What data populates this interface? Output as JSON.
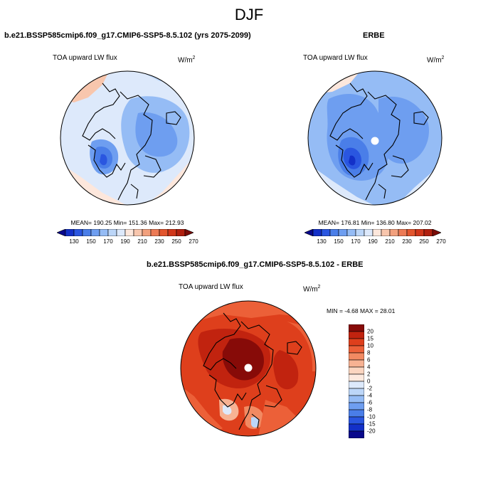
{
  "title": "DJF",
  "panels": [
    {
      "title": "b.e21.BSSP585cmip6.f09_g17.CMIP6-SSP5-8.5.102 (yrs 2075-2099)",
      "variable": "TOA upward LW flux",
      "units": "W/m",
      "units_sup": "2",
      "stats": "MEAN= 190.25   Min= 151.36   Max= 212.93",
      "colorbar": {
        "labels": [
          "130",
          "150",
          "170",
          "190",
          "210",
          "230",
          "250",
          "270"
        ]
      }
    },
    {
      "title": "ERBE",
      "variable": "TOA upward LW flux",
      "units": "W/m",
      "units_sup": "2",
      "stats": "MEAN= 176.81   Min= 136.80   Max= 207.02",
      "colorbar": {
        "labels": [
          "130",
          "150",
          "170",
          "190",
          "210",
          "230",
          "250",
          "270"
        ]
      }
    },
    {
      "title": "b.e21.BSSP585cmip6.f09_g17.CMIP6-SSP5-8.5.102 - ERBE",
      "variable": "TOA upward LW flux",
      "units": "W/m",
      "units_sup": "2",
      "stats": "MIN =  -4.68 MAX =  28.01",
      "colorbar": {
        "labels": [
          "20",
          "15",
          "10",
          "8",
          "6",
          "4",
          "2",
          "0",
          "-2",
          "-4",
          "-6",
          "-8",
          "-10",
          "-15",
          "-20"
        ]
      }
    }
  ],
  "colors": {
    "abs_scale": [
      "#08088c",
      "#1330c8",
      "#2a56e0",
      "#4a7ee8",
      "#6e9ef0",
      "#95bcf5",
      "#bcd6f8",
      "#dde9fb",
      "#fde7dc",
      "#f8c6ad",
      "#f2a07d",
      "#ec7a55",
      "#e2552d",
      "#d0361a",
      "#b0200f",
      "#7a0c08"
    ],
    "diff_scale": [
      "#870b08",
      "#c1230f",
      "#de3f1c",
      "#ec6038",
      "#f28a62",
      "#f7b293",
      "#fbd5c0",
      "#fde9de",
      "#dde9fb",
      "#bcd6f8",
      "#95bcf5",
      "#6e9ef0",
      "#4a7ee8",
      "#2a56e0",
      "#1330c8",
      "#08088c"
    ]
  }
}
